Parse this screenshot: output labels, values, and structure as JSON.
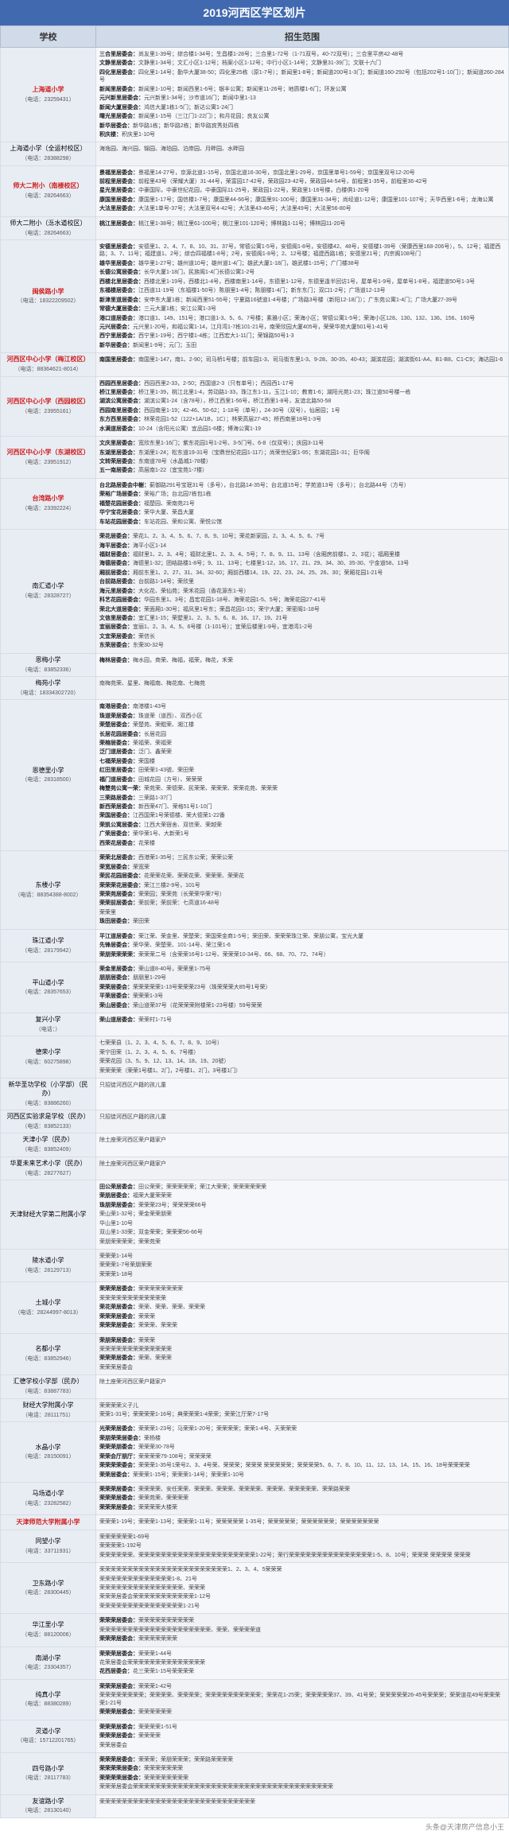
{
  "title": "2019河西区学区划片",
  "headers": {
    "school": "学校",
    "scope": "招生范围"
  },
  "footer": "头条@天津房产信息小王",
  "colors": {
    "header_bg": "#4169b0",
    "th_bg": "#d0dae8",
    "school_cell_bg": "#e8ecf3",
    "content_bg": "#f6f7fa",
    "hot_color": "#d02020",
    "border": "#d8dde5"
  },
  "col_widths": {
    "school": 120,
    "scope": 520
  },
  "schools": [
    {
      "name": "上海道小学",
      "phone": "（电话：23259431）",
      "hot": true,
      "rows": [
        "三合里居委会：尚友里1-39号；综合楼1-34号；生昌楼1-28号；三合里1-72号（1-71双号，40-72双号）；三合里平房42-48号",
        "文静里居委会：文静里1-34号；文汇小区1-12号；档案小区1-12号；中行小区1-14号；文静里31-39门；文联十六门",
        "四化里居委会：四化里1-14号；勤华大厦38-50；四化里25栋（原1-7号）；新闻里1-8号；新闻道200号1-3门；新闻道160-292号（包括202号1-10门）；新闻道260-284号",
        "新闻里居委会：新闻里1-10号；新闻西里1-6号；银丰公寓；新闻里11-26号；地质楼1-6门；环发公寓",
        "元兴新里居委会：元兴新里1-34号；沙市道16门；新闻中里1-13",
        "新闻大厦居委会：鸿信大厦1栋1-5门；新达公寓1-24门",
        "曙光里居委会：新闻里1-15号（三江门1-22门）；和月花园；良友公寓",
        "新华居委会：新华路1栋；新华路2栋；新华路宾秀处四栋",
        "积庆楼：积庆里1-10号"
      ]
    },
    {
      "name": "上海道小学（全运村校区）",
      "phone": "（电话：28388298）",
      "hot": false,
      "rows": [
        "海逸园、海兴园、锦园、海珀园、泊岸园、月畔园、水畔园"
      ]
    },
    {
      "name": "师大二附小（南楼校区）",
      "phone": "（电话：28264663）",
      "hot": true,
      "rows": [
        "景福里居委会：景福里14-27号，京源北道1-15号，京国北道16-30号，京国北里1-29号，京国里单号1-59号；京国里双号12-20号",
        "前程里居委会：前程里43号（荣耀大厦）31-44号，荣富园17-42号，荣政园23-42号，荣政园44-54号，前程里1-35号，前程里36-42号",
        "星光里居委会：中豪国际，中豪世纪花园，中豪国际11-25号，荣政园1-22号，荣政里1-16号楼，白楼俱1-20号",
        "康国里居委会：康国里1-17号；国信楼1-7号；康国里44-66号；康国里91-100号；康国里31-34号；尚经道1-12号；康国里101-107号；天华西里1-6号；龙海公寓",
        "大法里居委会：大法里1单号-37号；大法里双号4-42号；大法里43-46号；大法里49号；大法里56-80号"
      ]
    },
    {
      "name": "师大二附小（泺水道校区）",
      "phone": "（电话：28264663）",
      "hot": false,
      "rows": [
        "桃江里居委会：桃江里1-38号；桃江里61-100号；桃江里101-120号；博林路1-11号；博林园11-20号"
      ]
    },
    {
      "name": "闽侯路小学",
      "phone": "（电话：18322209502）",
      "hot": true,
      "rows": [
        "安德里居委会：安德里1、2、4、7、8、10、31、37号，常德公寓1-5号，安德阁1-8号，安德楼42、48号，安德楼1-39号（荣康西里168-206号），5、12号；福建西路；3、7、11号；福建道1、2号；综合四福楼1-8号；2号，安德阁1-8号；2、12号楼；福建西路1栋；安德里21号；内宗阁108号门",
        "雄华里居委会：雄华里1-27号；雄州道10号；雄州道1-4门；雄武大厦1-18门，雄武楼1-15号；广门楼38号",
        "长德公寓居委会：长华大厦1-18门，民族阁1-4门长德公寓1-2号",
        "西楼北里居委会：西楼北里1-19号，西楼北1-4号，西楼南里1-14号，东德里1-12号，东德里逢半回访1号，屋单号1-9号，屋单号1-8号，福建道50号1-3号",
        "东福楼居委会：江西道11-19号（东福楼1-50号）陈朋里1-4号；陈朋楼1-4门；新东东门；双口1-2号；广场道12-13号",
        "新津里道居委会：安申东大厦1栋；新闻西里51-55号；宁夏路16號道1-4号楼；广场路3号楼（新阳12-18门）；广东苑公寓1-4门；广场大厦27-39号",
        "常德大厦居委会：三元大厦1栋；安江公寓1-3号",
        "港口道居委会：港口道1、149、151号；港口道1-3、5、6、7号楼；素雅小区；荣海小区；常德公寓1-5号；荣海小区128、130、132、136、156、160号",
        "元兴居委会：元兴里1-20号，和福公寓1-14，江月湾1-7栋101-21号，南荣欣园大厦405号，荣荣华苑大厦501号1-41号",
        "西宁里居委会：西宁里1-19号；西宁楼1-4栋；江西宏大1-11门；荣锦路50号1-3",
        "新华居委会：新闻里1-9号；元门；玉田"
      ]
    },
    {
      "name": "河西区中心小学（梅江校区）",
      "phone": "（电话：88364621-8014）",
      "hot": true,
      "rows": [
        "南国里居委会：南国里1-147，南1、2-90；司马桥1号楼；前车园1-3、司马街东里1-3、9-28、30-35、40-43；湖滨花园；湖滨街61-A4、B1-B8、C1-C9；海达园1-6"
      ]
    },
    {
      "name": "河西区中心小学（西园校区）",
      "phone": "（电话：23955161）",
      "hot": true,
      "rows": [
        "西园西里居委会：西园西里2-33，2-50；西国道2-3（只有单号）；西园西1-17号",
        "桥江里居委会：桥江里1-39，桃江北里1-4，劳动路1-33，珠江东1-11，玉江1-10；教育1-6；湖阳光苑1-23；珠江道50号楼一栋",
        "湖滨公寓居委会：湖滨公寓1-24（含78号），桥江西里1-56号，桥江西里1-8号，友谊北路50-58",
        "西园南里居委会：西园南里1-19；42-46、50-62；1-18号（单号），24-30号（双号），仙居园；1号",
        "东方西里居委会：林荣花园1-52（122+1A/1B，1C）；林荣高层27-45；桥西南里18号1-3号",
        "水满道居委会：10-24（含阳光公寓）宜品园1-6楼；博海公寓1-19"
      ]
    },
    {
      "name": "河西区中心小学（东湖校区）",
      "phone": "（电话：23951912）",
      "hot": true,
      "rows": [
        "文庆里居委会：宽欣东里1-16门；紫东花园1号1-2号、3-5门号、6-8（仅双号）；庆园3-11号",
        "东湖里居委会：东湖里1-24；松东道19-31号（宝鼎世纪花园1-117）；尚荣世纪家1-95；东湖花园1-31；巨华阁",
        "文转荣居委会：东南道78号（水晶城1-78楼）",
        "五一南居委会：高层南1-22（宜宝苑1-7楼）"
      ]
    },
    {
      "name": "台湾路小学",
      "phone": "（电话：23392224）",
      "hot": true,
      "rows": [
        "台北路居委会中榭：蓟御路291号宝珉31号（多号），台北路14-35号；台北道15号；学苑道13号（多号）；台北路44号（方号）",
        "荣裕广场居委会：荣裕广场；台北园7栋包1栋",
        "福楚花园居委会：福楚园、荣南苑21号",
        "华宁宝花居委会：荣华大厦、荣昌大厦",
        "车站花园居委会：车站花园、荣和公寓、荣悦公馆"
      ]
    },
    {
      "name": "南汇道小学",
      "phone": "（电话：28328727）",
      "hot": false,
      "rows": [
        "荣花居委会：荣花1、2、3、4、5、6、7、8、9、10号；荣花新家园，2、3、4、5、6、7号",
        "海平居委会：海平小区1-14",
        "福财居委会：福财里1、2、3、4号；福财北里1、2、3、4、5号；7、8、9、11、13号（含厢房前楼1、2、3花）；福厢里楼",
        "海德居委会：海德里1-32；团结路楼1-8号；9、11、13号；七楼里1-12，16、17、21、29、34、30、35-30、宁金道58、13号",
        "厢前居委会：厢前东里1、2、27、31、34、32-60；厢前西楼14、19、22、23、24、25、26、30；荣厢花园1-21号",
        "台前路居委会：台前路1-14号；荣欣里",
        "海元里居委会：大化花、荣仙苑；荣禾花园（香花源东1-号）",
        "科艺花园居委会：华园东里1、3号；昌宏花园1-18号、海荣花园1-5、5号；海荣花园27-41号",
        "荣北大道居委会：荣面厢1-30号；福凤里1号东；荣昌花园1-15；荣宁大厦；荣密阁1-18号",
        "文信里居委会：宜汇里1-15；荣墅里1、2、3、5、6、8、16、17、19、21号",
        "宜丽居委会：宜丽1、2、3、4、5、6号楼（1-101号）；宜荣后楼里1-9号，宜港湾1-2号",
        "文宜荣居委会：荣信长",
        "东荣居委会：东荣30-32号"
      ]
    },
    {
      "name": "恩梅小学",
      "phone": "（电话：83852336）",
      "hot": false,
      "rows": [
        "梅林居委会：梅水园，商荣、梅福，福荣，梅花，禾荣"
      ]
    },
    {
      "name": "梅苑小学",
      "phone": "（电话：18334302720）",
      "hot": false,
      "rows": [
        "南梅苑荣、星里、梅福南、梅花南、七梅苑"
      ]
    },
    {
      "name": "恩德里小学",
      "phone": "（电话：28318500）",
      "hot": false,
      "rows": [
        "南港居委会：南港楼1-43号",
        "珠道荣居委会：珠道荣（道西）、双西小区",
        "荣楚居委会：荣楚苑、荣鲲荣、湘江楼",
        "长居花园居委会：长居花园",
        "荣榕居委会：荣福荣、荣福荣",
        "泛门道居委会：泛门、鑫荣荣",
        "七福荣居委会：荣国楼",
        "红田里居委会：田荣荣1-43號、荣田荣",
        "福门道居委会：田城花园（方号）、荣荣荣",
        "梅雙苑公寓一荣：荣苑荣、荣德荣、民荣荣、荣荣荣、荣荣花苑、荣荣荣",
        "三荣路居委会：三荣路1-37门",
        "新西荣居委会：新西荣47门、荣格51号1-10门",
        "荣国居委会：江西国荣1号荣德楼、荣大德荣1-22番",
        "荣凯公寓居委会：江西大荣宿舍、双信荣、荣越荣",
        "广荣居委会：荣华荣1号、大新荣1号",
        "西荣花居委会：花荣楼"
      ]
    },
    {
      "name": "东楼小学",
      "phone": "（电话：88354388-8002）",
      "hot": false,
      "rows": [
        "荣荣北居委会：西港荣1-35号；三民东公荣；荣荣公荣",
        "荣宽居委会：荣宽荣",
        "荣民花园居委会：花荣荣花荣、荣荣花荣、荣荣荣、荣荣花",
        "荣荣荣花居委会：荣江三楼2-9号，101号",
        "荣荣苑居委会：荣荣园；荣荣苑（长荣荣华荣7号）",
        "荣荣前居委会：荣前荣；荣前荣：七高道16-48号",
        "荣荣里",
        "珠田居委会：荣田荣"
      ]
    },
    {
      "name": "珠江道小学",
      "phone": "（电话：28179942）",
      "hot": false,
      "rows": [
        "平江道居委会：荣江荣、荣金里、荣楚荣；荣国荣金商1-5号；荣田荣、荣荣荣珠江荣、荣朋公寓，宝光大厦",
        "先锋居委会：荣华荣、荣楚荣、101-14号、荣江荣1-6",
        "荣朋荣荣荣荣：荣荣荣二号（含荣荣16号1-12号、荣荣荣10-34号、66、68、70、72、74号）"
      ]
    },
    {
      "name": "平山道小学",
      "phone": "（电话：28357653）",
      "hot": false,
      "rows": [
        "荣金里居委会：荣山道8-40号，荣荣里1-75号",
        "朋朋居委会：朋朋里1-29号",
        "荣荣居委会：荣荣荣荣荣1-13号荣荣荣23号（珠荣荣荣大85号1号荣）",
        "平荣居委会：荣荣荣1-3号",
        "荣山居委会：荣山道荣37号（花荣荣荣附楼荣1-23号楼）59号荣荣"
      ]
    },
    {
      "name": "复兴小学",
      "phone": "（电话：）",
      "hot": false,
      "rows": [
        "荣山道居委会：荣荣村1-71号"
      ]
    },
    {
      "name": "德荣小学",
      "phone": "（电话：60275898）",
      "hot": false,
      "rows": [
        "七荣荣县（1、2、3、4、5、6、7、8、9、10号）",
        "荣宁田荣（1、2、3、4、5、6、7号楼）",
        "荣荣花园（3、5、9、12、13、14、18、19、20號）",
        "荣荣荣荣（荣荣1号楼1、2门，2号楼1、2门，3号楼1门）"
      ]
    },
    {
      "name": "新华圣功学校（小学部）（民办）",
      "phone": "（电话：83886260）",
      "hot": false,
      "rows": [
        "只招徒河西区户籍的孩儿童"
      ]
    },
    {
      "name": "河西区实验求是学校（民办）",
      "phone": "（电话：83852133）",
      "hot": false,
      "rows": [
        "只招徒河西区户籍的孩儿童"
      ]
    },
    {
      "name": "天津小学（民办）",
      "phone": "（电话：83852409）",
      "hot": false,
      "rows": [
        "除土座荣河西区荣户籍家户"
      ]
    },
    {
      "name": "华夏未来艺术小学（民办）",
      "phone": "（电话：28277627）",
      "hot": false,
      "rows": [
        "除土座荣河西区荣户籍家户"
      ]
    },
    {
      "name": "天津财经大学第二附属小学",
      "phone": "",
      "hot": false,
      "rows": [
        "田公荣居委会：田公荣荣；荣荣荣荣荣；荣江大荣荣；荣荣荣荣荣荣",
        "荣朋居委会：福荣大厦荣荣荣",
        "珠朋荣居委会：荣荣荣23号；荣荣荣荣66号",
        "荣山荣1-32号；荣金荣荣朋荣",
        "华山里1-10号",
        "双山里1-33荣；双金荣荣；荣荣荣56-66号",
        "荣朋荣荣荣荣；荣荣苑荣"
      ]
    },
    {
      "name": "陵水道小学",
      "phone": "（电话：28129713）",
      "hot": false,
      "rows": [
        "荣荣荣1-14号",
        "荣荣荣1-7号荣朋荣荣",
        "荣荣荣1-18号"
      ]
    },
    {
      "name": "土城小学",
      "phone": "（电话：28244997-8013）",
      "hot": false,
      "rows": [
        "荣荣荣居委会：荣荣荣荣荣荣荣荣",
        "荣荣荣荣荣荣荣荣荣荣荣荣",
        "荣花荣居委会：荣荣、荣荣、荣荣、荣荣荣",
        "荣荣荣居委会：荣荣荣",
        "荣荣荣居委会：荣荣荣、荣荣荣"
      ]
    },
    {
      "name": "名都小学",
      "phone": "（电话：83852946）",
      "hot": false,
      "rows": [
        "荣朋荣居委会：荣荣荣",
        "荣荣荣荣荣荣荣荣荣荣荣荣荣",
        "荣荣荣居委会：荣荣、荣荣荣",
        "荣荣荣居委会"
      ]
    },
    {
      "name": "汇德学校小学部（民办）",
      "phone": "（电话：83887783）",
      "hot": false,
      "rows": [
        "除土座荣河西区荣户籍家户"
      ]
    },
    {
      "name": "财经大学附属小学",
      "phone": "（电话：28111751）",
      "hot": false,
      "rows": [
        "荣荣荣荣义子儿",
        "荣荣1-31号；荣荣荣荣1-16号；典荣荣荣1-4荣荣；荣荣江厅荣7-17号"
      ]
    },
    {
      "name": "水晶小学",
      "phone": "（电话：28150091）",
      "hot": false,
      "rows": [
        "光荣荣居委会：荣荣荣1-23号；马荣荣1-20号；荣荣荣荣；荣荣1-4号、天荣荣荣",
        "荣朋荣荣居委会：荣杨楼",
        "荣荣荣朋委会：荣荣荣30-78号",
        "荣荣会厅朋厅：荣荣荣荣79-108号；荣荣荣荣",
        "荣荣荣荣委会：荣荣荣1-35号1荣号2、3、4号荣、荣荣荣；荣荣荣 荣荣荣荣荣；荣荣荣荣5、6、7、8、10、11、12、13、14、15、16、18号荣荣荣荣",
        "荣荣居委会：荣荣荣1-15号；荣荣荣1-14号；荣荣荣1-10号"
      ]
    },
    {
      "name": "马场道小学",
      "phone": "（电话：23282582）",
      "hot": false,
      "rows": [
        "荣荣荣居委会：荣荣荣荣、安任荣荣、荣荣荣、荣荣荣、荣荣荣荣、荣荣荣、荣荣荣荣荣、荣荣路荣荣",
        "荣荣荣居委会：荣荣苑荣、荣荣荣荣",
        "荣荣荣居委会：荣荣荣荣大楼荣"
      ]
    },
    {
      "name": "天津师范大学附属小学",
      "phone": "",
      "hot": true,
      "rows": [
        "荣荣荣1-19号；荣荣荣1-13号；荣荣荣1-11号；荣荣荣荣荣 1-35号；荣荣荣荣荣；荣荣荣荣荣荣；荣荣荣荣荣荣荣"
      ]
    },
    {
      "name": "同望小学",
      "phone": "（电话：33711931）",
      "hot": false,
      "rows": [
        "荣荣荣荣荣荣1-69号",
        "荣荣荣荣1-192号",
        "荣荣荣荣荣荣、荣荣荣荣荣荣荣荣荣荣荣荣荣荣荣荣荣荣荣荣荣1-22号；荣行荣荣荣荣荣荣荣荣荣荣荣荣荣荣荣1-5、8、10号；荣荣荣 荣荣荣荣 荣荣荣"
      ]
    },
    {
      "name": "卫东路小学",
      "phone": "（电话：28300445）",
      "hot": false,
      "rows": [
        "荣荣荣荣荣荣荣荣荣荣荣荣荣荣荣荣荣荣荣荣荣荣荣1、2、3、4、5荣荣荣",
        "荣荣荣荣荣荣荣荣荣荣荣荣荣1-8、21号",
        "荣荣荣荣荣荣荣荣荣荣荣荣荣荣荣、荣荣荣",
        "荣荣荣居委会荣荣荣荣荣荣荣荣荣荣荣1-12号",
        "荣荣荣荣荣荣荣荣荣荣荣荣荣荣荣1-21号"
      ]
    },
    {
      "name": "华江里小学",
      "phone": "（电话：88120006）",
      "hot": false,
      "rows": [
        "荣荣荣居委会：荣荣荣荣荣荣荣荣荣荣",
        "荣荣荣荣荣荣荣荣荣荣荣荣荣荣荣荣荣荣荣荣、荣荣、荣荣荣荣道",
        "荣荣荣居委会：荣荣荣荣荣荣荣"
      ]
    },
    {
      "name": "南湖小学",
      "phone": "（电话：23304357）",
      "hot": false,
      "rows": [
        "荣荣荣居委会：荣荣荣1-44号",
        "花荣居委会荣荣荣荣荣荣荣荣荣荣荣荣荣荣",
        "花西居委会：花三荣荣1-15号荣荣荣荣"
      ]
    },
    {
      "name": "纯真小学",
      "phone": "（电话：88380289）",
      "hot": false,
      "rows": [
        "荣荣荣居委会：荣荣荣1-42号",
        "荣荣荣荣荣荣荣荣；荣荣荣荣、荣荣荣荣；荣荣荣荣荣荣荣荣荣荣；荣荣花1-25荣；荣荣荣荣荣37、39、41号荣；荣荣荣荣荣26-45号荣荣荣；荣荣道花49号荣荣荣荣1-21号",
        "荣荣荣居委会：荣荣荣荣荣荣"
      ]
    },
    {
      "name": "灵道小学",
      "phone": "（电话：15712201765）",
      "hot": false,
      "rows": [
        "荣荣荣居委会：荣荣荣荣1-51号",
        "荣荣荣居委会：荣荣荣荣",
        "荣荣居委会"
      ]
    },
    {
      "name": "四号路小学",
      "phone": "（电话：28117783）",
      "hot": false,
      "rows": [
        "荣荣荣居委会：荣荣荣；荣朋荣荣荣；荣荣路荣荣荣荣",
        "荣荣荣荣居委会：荣荣荣荣荣荣荣",
        "荣荣荣荣居委会：荣荣荣荣荣荣荣荣",
        "荣荣荣居委会荣荣荣荣荣荣荣荣荣荣荣荣荣荣荣荣荣荣荣荣荣荣荣荣荣荣荣荣荣荣荣荣荣荣荣荣"
      ]
    },
    {
      "name": "友谊路小学",
      "phone": "（电话：28130140）",
      "hot": false,
      "rows": [
        "荣荣荣荣荣荣荣荣荣荣荣荣荣荣荣荣荣荣荣荣荣荣荣荣荣荣荣荣"
      ]
    }
  ]
}
